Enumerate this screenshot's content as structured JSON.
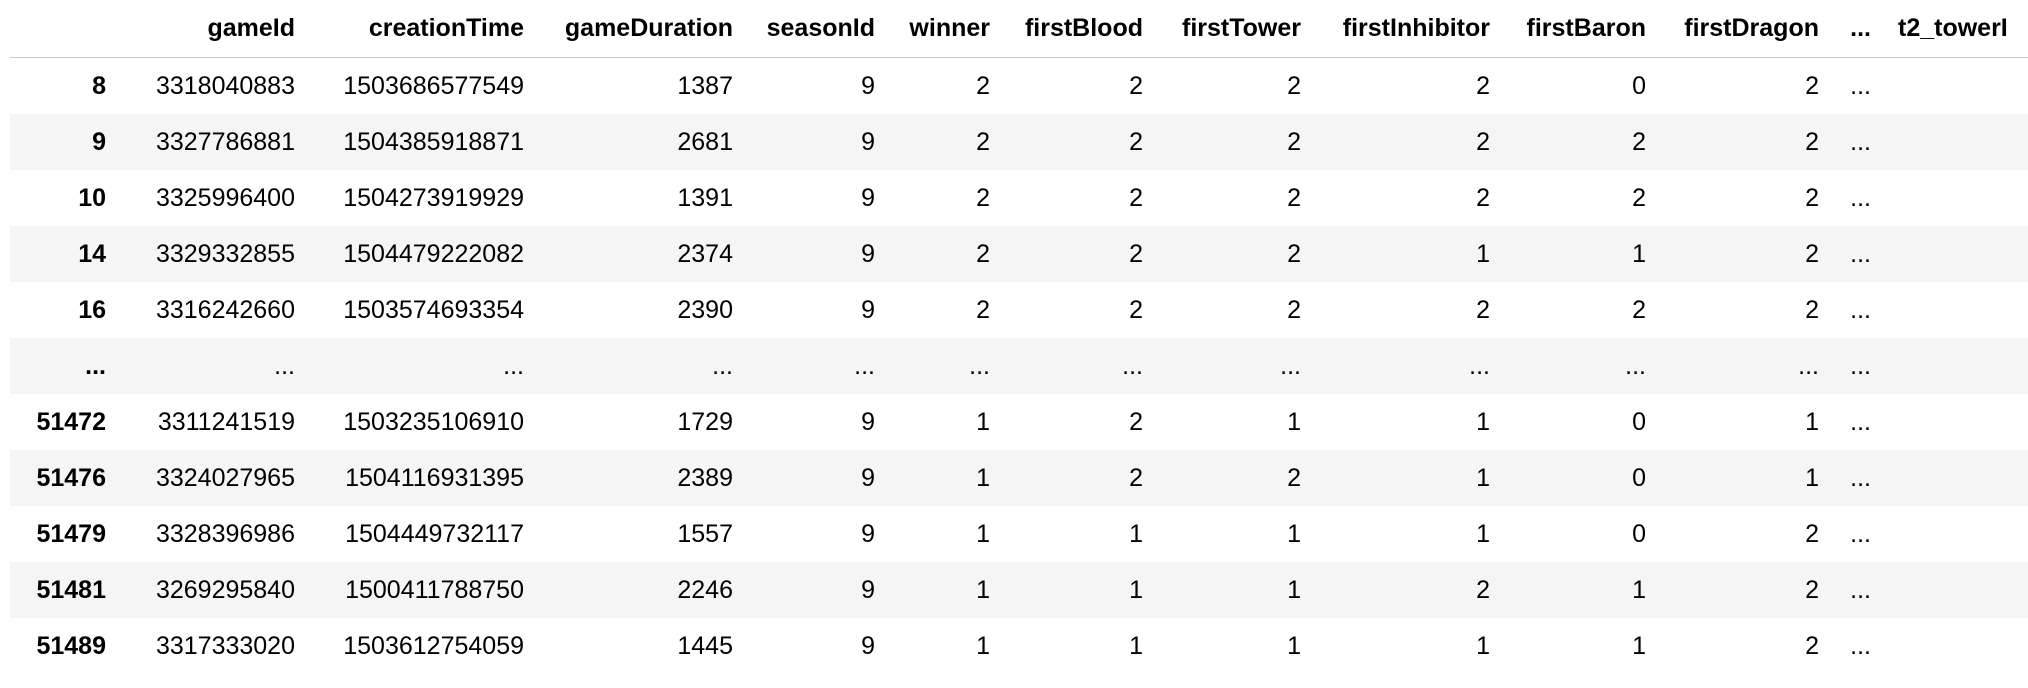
{
  "table": {
    "columns": [
      "",
      "gameId",
      "creationTime",
      "gameDuration",
      "seasonId",
      "winner",
      "firstBlood",
      "firstTower",
      "firstInhibitor",
      "firstBaron",
      "firstDragon",
      "...",
      "t2_towerI"
    ],
    "rows": [
      {
        "index": "8",
        "cells": [
          "3318040883",
          "1503686577549",
          "1387",
          "9",
          "2",
          "2",
          "2",
          "2",
          "0",
          "2",
          "..."
        ]
      },
      {
        "index": "9",
        "cells": [
          "3327786881",
          "1504385918871",
          "2681",
          "9",
          "2",
          "2",
          "2",
          "2",
          "2",
          "2",
          "..."
        ]
      },
      {
        "index": "10",
        "cells": [
          "3325996400",
          "1504273919929",
          "1391",
          "9",
          "2",
          "2",
          "2",
          "2",
          "2",
          "2",
          "..."
        ]
      },
      {
        "index": "14",
        "cells": [
          "3329332855",
          "1504479222082",
          "2374",
          "9",
          "2",
          "2",
          "2",
          "1",
          "1",
          "2",
          "..."
        ]
      },
      {
        "index": "16",
        "cells": [
          "3316242660",
          "1503574693354",
          "2390",
          "9",
          "2",
          "2",
          "2",
          "2",
          "2",
          "2",
          "..."
        ]
      },
      {
        "index": "...",
        "cells": [
          "...",
          "...",
          "...",
          "...",
          "...",
          "...",
          "...",
          "...",
          "...",
          "...",
          "..."
        ]
      },
      {
        "index": "51472",
        "cells": [
          "3311241519",
          "1503235106910",
          "1729",
          "9",
          "1",
          "2",
          "1",
          "1",
          "0",
          "1",
          "..."
        ]
      },
      {
        "index": "51476",
        "cells": [
          "3324027965",
          "1504116931395",
          "2389",
          "9",
          "1",
          "2",
          "2",
          "1",
          "0",
          "1",
          "..."
        ]
      },
      {
        "index": "51479",
        "cells": [
          "3328396986",
          "1504449732117",
          "1557",
          "9",
          "1",
          "1",
          "1",
          "1",
          "0",
          "2",
          "..."
        ]
      },
      {
        "index": "51481",
        "cells": [
          "3269295840",
          "1500411788750",
          "2246",
          "9",
          "1",
          "1",
          "1",
          "2",
          "1",
          "2",
          "..."
        ]
      },
      {
        "index": "51489",
        "cells": [
          "3317333020",
          "1503612754059",
          "1445",
          "9",
          "1",
          "1",
          "1",
          "1",
          "1",
          "2",
          "..."
        ]
      }
    ]
  }
}
